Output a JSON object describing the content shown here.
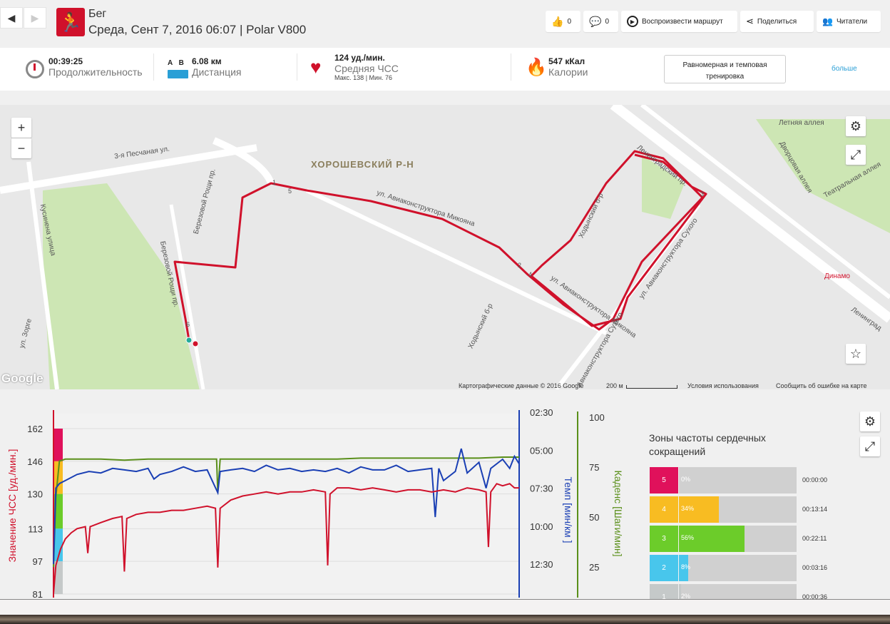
{
  "header": {
    "sport": "Бег",
    "subtitle": "Среда, Сент 7, 2016 06:07 | Polar V800",
    "likes": "0",
    "comments": "0",
    "replay": "Воспроизвести маршрут",
    "share": "Поделиться",
    "followers": "Читатели"
  },
  "stats": {
    "duration_value": "00:39:25",
    "duration_label": "Продолжительность",
    "distance_a": "A",
    "distance_b": "B",
    "distance_value": "6.08 км",
    "distance_label": "Дистанция",
    "hr_value": "124 уд./мин.",
    "hr_label": "Средняя ЧСС",
    "hr_max": "Макс. 138",
    "hr_sep": "|",
    "hr_min": "Мин. 76",
    "calories_value": "547 кКал",
    "calories_label": "Калории",
    "training_button": "Равномерная и темповая тренировка",
    "more_link": "больше"
  },
  "map": {
    "district": "ХОРОШЕВСКИЙ Р-Н",
    "streets": [
      "3-я Песчаная ул.",
      "ул. Авиаконструктора Микояна",
      "ул. Авиаконструктора Микояна",
      "Ленинградский пр.",
      "Летняя аллея",
      "Дворцовая аллея",
      "Театральная аллея",
      "Ходынский б-р",
      "Ходынский б-р",
      "ул. Авиаконструктора Сухого",
      "ул. Авиаконструктора Сухого",
      "Березовой Рощи пр.",
      "Березовой Рощи пр.",
      "Кусинена улица",
      "Динамо",
      "Ленинград",
      "ул. Зорге"
    ],
    "markers": [
      "1",
      "2",
      "3",
      "4",
      "5",
      "6"
    ],
    "google": "Google",
    "footer_data": "Картографические данные © 2016 Google",
    "scale": "200 м",
    "terms": "Условия использования",
    "report": "Сообщить об ошибке на карте",
    "zoom_in": "+",
    "zoom_out": "−"
  },
  "chart_data": {
    "type": "line",
    "x_unit": "minutes",
    "xlim": [
      0,
      39.4
    ],
    "axes": {
      "hr": {
        "label": "Значение ЧСС [уд./мин.]",
        "ticks": [
          "162",
          "146",
          "130",
          "113",
          "97",
          "81"
        ],
        "range": [
          81,
          162
        ],
        "color": "#d0112b"
      },
      "pace": {
        "label": "Темп [мин/км ]",
        "ticks": [
          "02:30",
          "05:00",
          "07:30",
          "10:00",
          "12:30"
        ],
        "range_min": [
          2.5,
          12.5
        ],
        "color": "#1a3fb4"
      },
      "cadence": {
        "label": "Каденс [Шаги/мин]",
        "ticks": [
          "100",
          "75",
          "50",
          "25"
        ],
        "range": [
          25,
          100
        ],
        "color": "#5a8f1a"
      }
    },
    "series": [
      {
        "name": "hr",
        "values": [
          [
            0,
            81
          ],
          [
            0.2,
            95
          ],
          [
            0.6,
            103
          ],
          [
            1,
            108
          ],
          [
            1.5,
            111
          ],
          [
            2,
            113
          ],
          [
            2.7,
            114
          ],
          [
            2.9,
            101
          ],
          [
            3.1,
            114
          ],
          [
            4,
            116
          ],
          [
            5,
            118
          ],
          [
            5.8,
            119
          ],
          [
            6,
            92
          ],
          [
            6.2,
            118
          ],
          [
            7,
            120
          ],
          [
            8,
            121
          ],
          [
            9,
            121
          ],
          [
            10,
            122
          ],
          [
            11,
            122
          ],
          [
            12,
            123
          ],
          [
            13,
            124
          ],
          [
            13.7,
            123
          ],
          [
            13.9,
            94
          ],
          [
            14.1,
            123
          ],
          [
            15,
            127
          ],
          [
            16,
            129
          ],
          [
            17,
            130
          ],
          [
            18,
            131
          ],
          [
            19,
            130
          ],
          [
            20,
            131
          ],
          [
            21,
            131
          ],
          [
            22,
            132
          ],
          [
            23,
            131
          ],
          [
            23.2,
            95
          ],
          [
            23.4,
            130
          ],
          [
            24,
            133
          ],
          [
            25,
            133
          ],
          [
            26,
            132
          ],
          [
            27,
            133
          ],
          [
            28,
            132
          ],
          [
            29,
            131
          ],
          [
            30,
            132
          ],
          [
            31,
            132
          ],
          [
            32,
            131
          ],
          [
            33,
            132
          ],
          [
            34,
            131
          ],
          [
            35,
            133
          ],
          [
            36,
            132
          ],
          [
            36.6,
            131
          ],
          [
            36.8,
            104
          ],
          [
            37,
            131
          ],
          [
            37.5,
            135
          ],
          [
            38,
            134
          ],
          [
            38.6,
            135
          ],
          [
            39,
            133
          ],
          [
            39.4,
            133
          ]
        ]
      },
      {
        "name": "pace",
        "values": [
          [
            0,
            12.5
          ],
          [
            0.2,
            7.5
          ],
          [
            0.5,
            7.2
          ],
          [
            1,
            7.0
          ],
          [
            2,
            6.6
          ],
          [
            3,
            6.4
          ],
          [
            4,
            6.5
          ],
          [
            5,
            6.2
          ],
          [
            6,
            6.3
          ],
          [
            7,
            6.4
          ],
          [
            8,
            6.2
          ],
          [
            8.5,
            6.9
          ],
          [
            9,
            6.6
          ],
          [
            10,
            6.4
          ],
          [
            11,
            6.1
          ],
          [
            12,
            6.4
          ],
          [
            13,
            6.3
          ],
          [
            13.9,
            7.8
          ],
          [
            14.1,
            6.4
          ],
          [
            15,
            6.3
          ],
          [
            16,
            6.2
          ],
          [
            17,
            6.4
          ],
          [
            18,
            6.0
          ],
          [
            19,
            6.3
          ],
          [
            20,
            6.2
          ],
          [
            21,
            6.4
          ],
          [
            22,
            6.3
          ],
          [
            23,
            6.4
          ],
          [
            24,
            6.2
          ],
          [
            25,
            6.5
          ],
          [
            26,
            6.1
          ],
          [
            27,
            6.3
          ],
          [
            28,
            6.3
          ],
          [
            29,
            6.0
          ],
          [
            30,
            6.4
          ],
          [
            31,
            6.3
          ],
          [
            32,
            6.2
          ],
          [
            32.3,
            9.4
          ],
          [
            32.6,
            6.2
          ],
          [
            33,
            7.0
          ],
          [
            34,
            6.4
          ],
          [
            34.5,
            4.9
          ],
          [
            35,
            6.5
          ],
          [
            36,
            5.8
          ],
          [
            36.6,
            7.5
          ],
          [
            37,
            6.2
          ],
          [
            38,
            5.6
          ],
          [
            38.6,
            6.2
          ],
          [
            39,
            5.4
          ],
          [
            39.4,
            5.9
          ]
        ]
      },
      {
        "name": "cadence",
        "values": [
          [
            0,
            25
          ],
          [
            0.2,
            60
          ],
          [
            0.5,
            78
          ],
          [
            1,
            79
          ],
          [
            2,
            79
          ],
          [
            4,
            79
          ],
          [
            6,
            78.5
          ],
          [
            8,
            79
          ],
          [
            10,
            79
          ],
          [
            12,
            79
          ],
          [
            13.8,
            79
          ],
          [
            13.9,
            62
          ],
          [
            14.1,
            79
          ],
          [
            16,
            79
          ],
          [
            18,
            79
          ],
          [
            20,
            79
          ],
          [
            22,
            79
          ],
          [
            24,
            79
          ],
          [
            26,
            79.5
          ],
          [
            28,
            79.5
          ],
          [
            30,
            79.5
          ],
          [
            32,
            79.5
          ],
          [
            34,
            79.5
          ],
          [
            36,
            79.5
          ],
          [
            38,
            80
          ],
          [
            39.4,
            80
          ]
        ]
      }
    ]
  },
  "zones": {
    "title": "Зоны частоты сердечных сокращений",
    "items": [
      {
        "zone": "5",
        "percent": "0%",
        "time": "00:00:00",
        "fraction": 0,
        "color": "#e0115b"
      },
      {
        "zone": "4",
        "percent": "34%",
        "time": "00:13:14",
        "fraction": 0.34,
        "color": "#f8bc22"
      },
      {
        "zone": "3",
        "percent": "56%",
        "time": "00:22:11",
        "fraction": 0.56,
        "color": "#6ccc2a"
      },
      {
        "zone": "2",
        "percent": "8%",
        "time": "00:03:16",
        "fraction": 0.08,
        "color": "#48c6ec"
      },
      {
        "zone": "1",
        "percent": "2%",
        "time": "00:00:36",
        "fraction": 0.02,
        "color": "#c5c9c9"
      }
    ]
  }
}
